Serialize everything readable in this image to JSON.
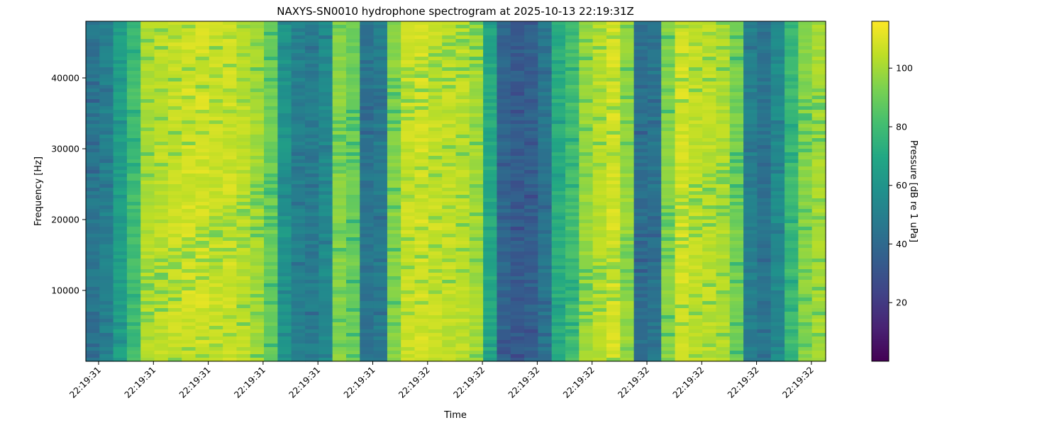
{
  "chart_data": {
    "type": "heatmap",
    "title": "NAXYS-SN0010 hydrophone spectrogram at 2025-10-13 22:19:31Z",
    "xlabel": "Time",
    "ylabel": "Frequency [Hz]",
    "x_tick_labels": [
      "22:19:31",
      "22:19:31",
      "22:19:31",
      "22:19:31",
      "22:19:31",
      "22:19:31",
      "22:19:32",
      "22:19:32",
      "22:19:32",
      "22:19:32",
      "22:19:32",
      "22:19:32",
      "22:19:32",
      "22:19:32"
    ],
    "ylim": [
      0,
      48000
    ],
    "y_ticks": [
      10000,
      20000,
      30000,
      40000
    ],
    "colorbar": {
      "label": "Pressure [dB re 1 uPa]",
      "range": [
        0,
        116
      ],
      "ticks": [
        20,
        40,
        60,
        80,
        100
      ],
      "colormap": "viridis"
    },
    "column_mean_db": [
      45,
      50,
      65,
      80,
      102,
      104,
      106,
      108,
      108,
      106,
      107,
      104,
      100,
      90,
      60,
      50,
      48,
      55,
      95,
      90,
      45,
      48,
      95,
      106,
      108,
      106,
      105,
      104,
      100,
      70,
      38,
      34,
      36,
      45,
      72,
      80,
      98,
      104,
      108,
      98,
      42,
      45,
      95,
      108,
      105,
      104,
      102,
      92,
      50,
      45,
      55,
      78,
      95,
      100
    ],
    "grid": false
  }
}
